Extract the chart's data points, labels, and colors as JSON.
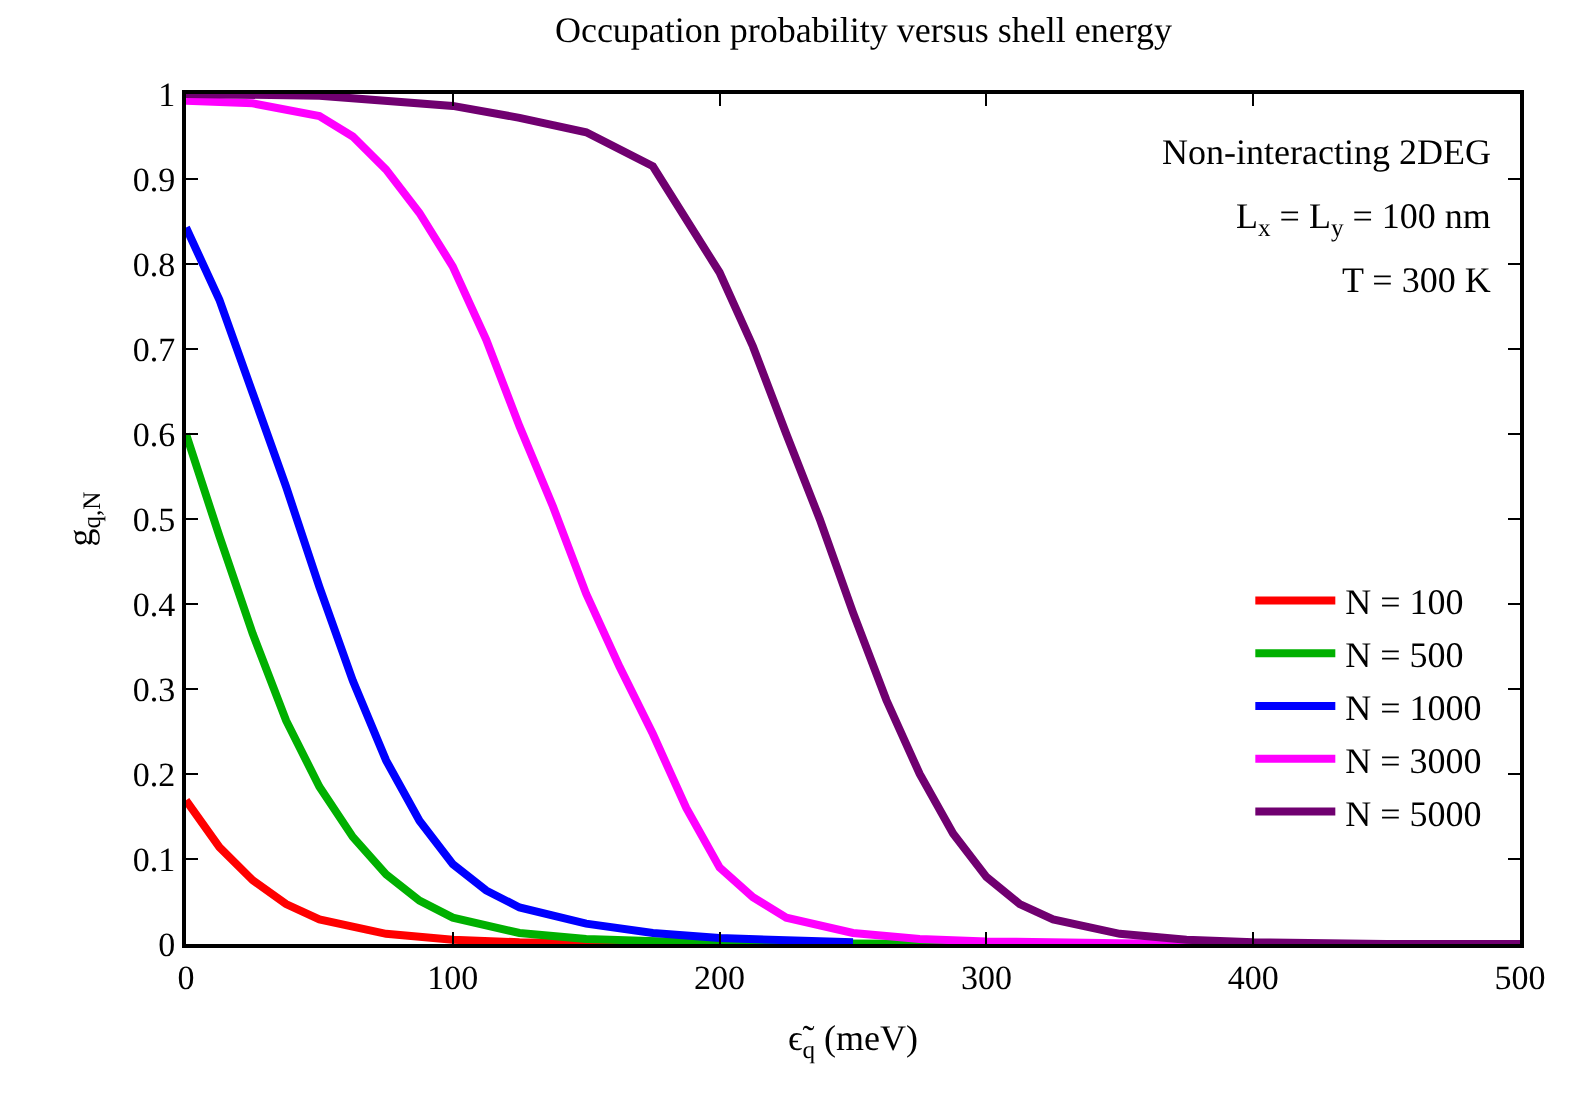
{
  "chart_data": {
    "type": "line",
    "title": "Occupation probability versus shell energy",
    "xlabel": "ϵ̃$_{q}$ (meV)",
    "ylabel": "g$_{q,N}$",
    "annotations": [
      "Non-interacting 2DEG",
      "L$_{x}$ = L$_{y}$ = 100 nm",
      "T = 300 K"
    ],
    "xlim": [
      0,
      500
    ],
    "xticks": [
      0,
      100,
      200,
      300,
      400,
      500
    ],
    "ylim": [
      0,
      1
    ],
    "yticks": [
      0,
      0.1,
      0.2,
      0.3,
      0.4,
      0.5,
      0.6,
      0.7,
      0.8,
      0.9,
      1
    ],
    "legend": "right",
    "marker": "none",
    "line_style": "solid",
    "series": [
      {
        "name": "N = 100",
        "color": "#ff0000",
        "x": [
          0,
          12.5,
          25,
          37.5,
          50,
          75,
          100,
          125,
          150,
          200
        ],
        "values": [
          0.169,
          0.114,
          0.075,
          0.047,
          0.029,
          0.012,
          0.005,
          0.002,
          0.001,
          0
        ]
      },
      {
        "name": "N = 500",
        "color": "#00b000",
        "x": [
          0,
          12.5,
          25,
          37.5,
          50,
          62.5,
          75,
          87.5,
          100,
          125,
          150,
          200,
          300
        ],
        "values": [
          0.6,
          0.48,
          0.365,
          0.263,
          0.185,
          0.126,
          0.082,
          0.051,
          0.031,
          0.013,
          0.006,
          0.001,
          0
        ]
      },
      {
        "name": "N = 1000",
        "color": "#0000ff",
        "x": [
          0,
          12.5,
          25,
          37.5,
          50,
          62.5,
          75,
          87.5,
          100,
          112.5,
          125,
          150,
          175,
          200,
          250
        ],
        "values": [
          0.843,
          0.758,
          0.648,
          0.538,
          0.42,
          0.31,
          0.216,
          0.145,
          0.094,
          0.063,
          0.043,
          0.024,
          0.013,
          0.007,
          0.002
        ]
      },
      {
        "name": "N = 3000",
        "color": "#ff00ff",
        "x": [
          0,
          25,
          50,
          62.5,
          75,
          87.5,
          100,
          112.5,
          125,
          137.5,
          150,
          162.5,
          175,
          187.5,
          200,
          212.5,
          225,
          250,
          275,
          300,
          350,
          400,
          500
        ],
        "values": [
          0.992,
          0.989,
          0.974,
          0.95,
          0.911,
          0.86,
          0.797,
          0.711,
          0.609,
          0.515,
          0.412,
          0.326,
          0.247,
          0.16,
          0.09,
          0.055,
          0.031,
          0.013,
          0.006,
          0.003,
          0.001,
          0,
          0
        ]
      },
      {
        "name": "N = 5000",
        "color": "#700070",
        "x": [
          0,
          50,
          100,
          125,
          150,
          175,
          200,
          212.5,
          225,
          237.5,
          250,
          262.5,
          275,
          287.5,
          300,
          312.5,
          325,
          350,
          375,
          400,
          450,
          500
        ],
        "values": [
          1.0,
          0.998,
          0.986,
          0.972,
          0.955,
          0.915,
          0.79,
          0.703,
          0.6,
          0.5,
          0.39,
          0.287,
          0.2,
          0.13,
          0.079,
          0.047,
          0.029,
          0.012,
          0.005,
          0.002,
          0,
          0
        ]
      }
    ]
  }
}
